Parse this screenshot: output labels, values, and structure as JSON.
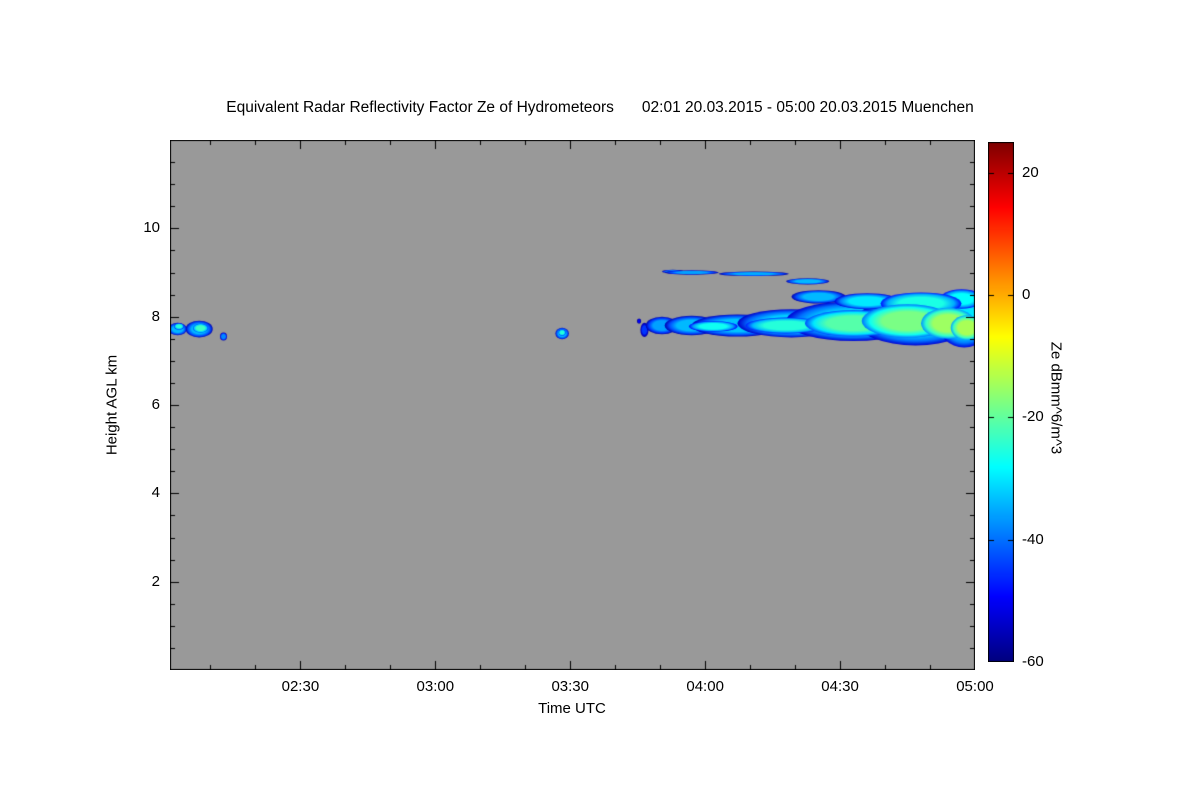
{
  "figure": {
    "title_main": "Equivalent Radar Reflectivity Factor Ze of Hydrometeors",
    "title_period": "02:01 20.03.2015 - 05:00 20.03.2015 Muenchen"
  },
  "chart_data": {
    "type": "heatmap",
    "title": "Equivalent Radar Reflectivity Factor Ze of Hydrometeors",
    "subtitle": "02:01 20.03.2015 - 05:00 20.03.2015 Muenchen",
    "station": "Muenchen",
    "time_start": "02:01 20.03.2015",
    "time_end": "05:00 20.03.2015",
    "xlabel": "Time UTC",
    "ylabel": "Height AGL km",
    "x_range_hours_utc": [
      2.0167,
      5.0
    ],
    "y_range_km": [
      0,
      12
    ],
    "x_ticks": [
      {
        "hour": 2.5,
        "label": "02:30"
      },
      {
        "hour": 3.0,
        "label": "03:00"
      },
      {
        "hour": 3.5,
        "label": "03:30"
      },
      {
        "hour": 4.0,
        "label": "04:00"
      },
      {
        "hour": 4.5,
        "label": "04:30"
      },
      {
        "hour": 5.0,
        "label": "05:00"
      }
    ],
    "x_minor_step_hours": 0.1666667,
    "y_ticks": [
      {
        "km": 2,
        "label": "2"
      },
      {
        "km": 4,
        "label": "4"
      },
      {
        "km": 6,
        "label": "6"
      },
      {
        "km": 8,
        "label": "8"
      },
      {
        "km": 10,
        "label": "10"
      }
    ],
    "y_minor_step_km": 0.5,
    "no_signal_color": "#999999",
    "colormap": "jet",
    "colorbar": {
      "label": "Ze dBmm^6/m^3",
      "min": -60,
      "max": 25,
      "ticks": [
        {
          "value": 20,
          "label": "20"
        },
        {
          "value": 0,
          "label": "0"
        },
        {
          "value": -20,
          "label": "-20"
        },
        {
          "value": -40,
          "label": "-40"
        },
        {
          "value": -60,
          "label": "-60"
        }
      ]
    },
    "clouds_schema": "t = time UTC in decimal hours, h = height AGL km, rt = half-width in hours, rh = half-height in km, ze = reflectivity dBmm^6/m^3",
    "clouds": [
      {
        "t": 2.045,
        "h": 7.72,
        "rt": 0.035,
        "rh": 0.14,
        "ze": -34
      },
      {
        "t": 2.05,
        "h": 7.78,
        "rt": 0.018,
        "rh": 0.07,
        "ze": -25
      },
      {
        "t": 2.125,
        "h": 7.72,
        "rt": 0.05,
        "rh": 0.19,
        "ze": -34
      },
      {
        "t": 2.13,
        "h": 7.74,
        "rt": 0.028,
        "rh": 0.1,
        "ze": -23
      },
      {
        "t": 2.215,
        "h": 7.55,
        "rt": 0.013,
        "rh": 0.09,
        "ze": -38
      },
      {
        "t": 3.47,
        "h": 7.62,
        "rt": 0.025,
        "rh": 0.13,
        "ze": -34
      },
      {
        "t": 3.47,
        "h": 7.64,
        "rt": 0.013,
        "rh": 0.07,
        "ze": -25
      },
      {
        "t": 3.755,
        "h": 7.9,
        "rt": 0.008,
        "rh": 0.06,
        "ze": -50
      },
      {
        "t": 3.775,
        "h": 7.7,
        "rt": 0.015,
        "rh": 0.16,
        "ze": -45
      },
      {
        "t": 3.84,
        "h": 7.8,
        "rt": 0.06,
        "rh": 0.2,
        "ze": -36
      },
      {
        "t": 3.95,
        "h": 7.8,
        "rt": 0.1,
        "rh": 0.22,
        "ze": -34
      },
      {
        "t": 4.12,
        "h": 7.8,
        "rt": 0.17,
        "rh": 0.25,
        "ze": -33
      },
      {
        "t": 4.32,
        "h": 7.85,
        "rt": 0.2,
        "rh": 0.32,
        "ze": -32
      },
      {
        "t": 4.55,
        "h": 7.9,
        "rt": 0.25,
        "rh": 0.45,
        "ze": -31
      },
      {
        "t": 4.78,
        "h": 7.9,
        "rt": 0.22,
        "rh": 0.55,
        "ze": -31
      },
      {
        "t": 4.96,
        "h": 7.9,
        "rt": 0.1,
        "rh": 0.6,
        "ze": -30
      },
      {
        "t": 4.03,
        "h": 7.78,
        "rt": 0.09,
        "rh": 0.12,
        "ze": -27
      },
      {
        "t": 4.3,
        "h": 7.8,
        "rt": 0.15,
        "rh": 0.18,
        "ze": -25
      },
      {
        "t": 4.55,
        "h": 7.85,
        "rt": 0.18,
        "rh": 0.3,
        "ze": -21
      },
      {
        "t": 4.75,
        "h": 7.9,
        "rt": 0.17,
        "rh": 0.38,
        "ze": -18
      },
      {
        "t": 4.9,
        "h": 7.85,
        "rt": 0.1,
        "rh": 0.35,
        "ze": -15
      },
      {
        "t": 4.97,
        "h": 7.75,
        "rt": 0.06,
        "rh": 0.28,
        "ze": -14
      },
      {
        "t": 4.42,
        "h": 8.45,
        "rt": 0.1,
        "rh": 0.15,
        "ze": -34
      },
      {
        "t": 4.6,
        "h": 8.35,
        "rt": 0.12,
        "rh": 0.18,
        "ze": -30
      },
      {
        "t": 4.8,
        "h": 8.3,
        "rt": 0.15,
        "rh": 0.25,
        "ze": -26
      },
      {
        "t": 4.95,
        "h": 8.4,
        "rt": 0.08,
        "rh": 0.22,
        "ze": -28
      },
      {
        "t": 3.88,
        "h": 9.02,
        "rt": 0.04,
        "rh": 0.04,
        "ze": -37
      },
      {
        "t": 3.95,
        "h": 9.0,
        "rt": 0.1,
        "rh": 0.05,
        "ze": -36
      },
      {
        "t": 4.18,
        "h": 8.97,
        "rt": 0.13,
        "rh": 0.05,
        "ze": -35
      },
      {
        "t": 4.38,
        "h": 8.8,
        "rt": 0.08,
        "rh": 0.07,
        "ze": -34
      }
    ]
  }
}
